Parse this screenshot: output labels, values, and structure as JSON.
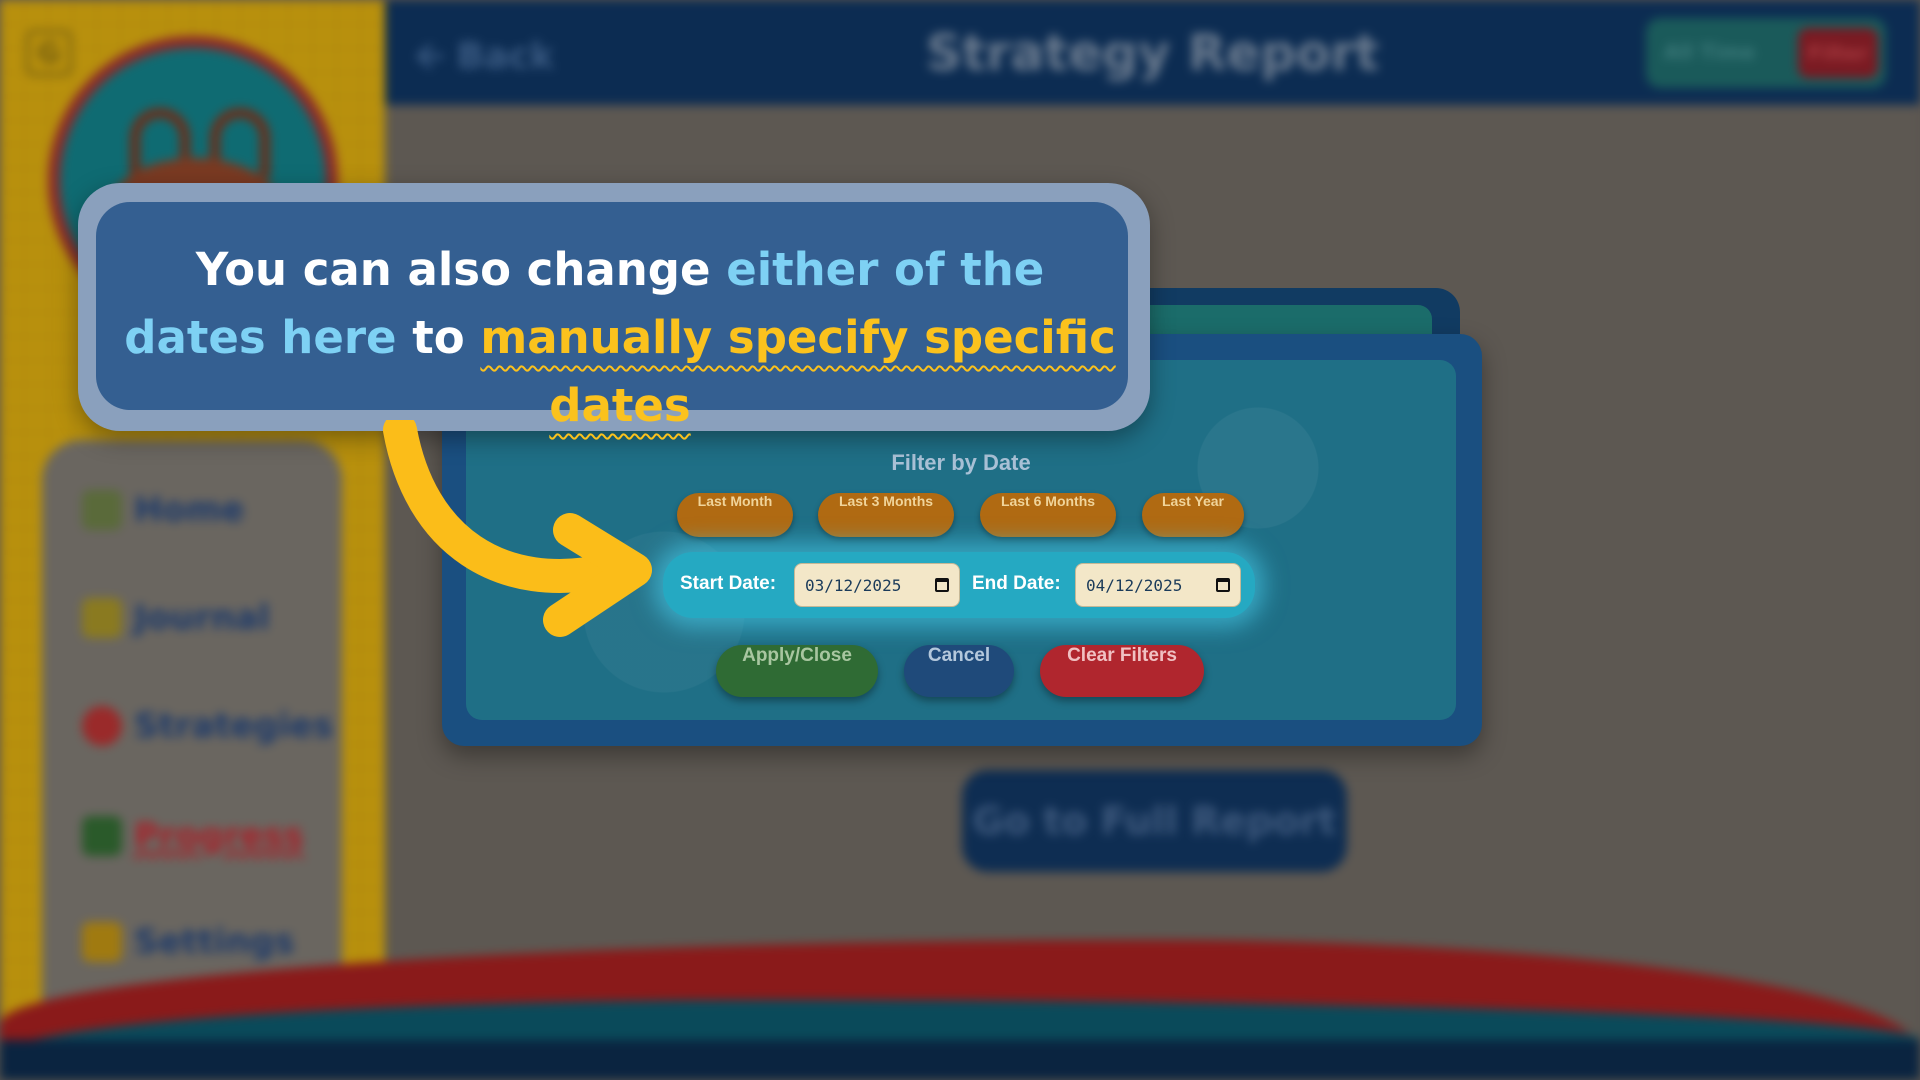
{
  "app": {
    "logo_letter": "G",
    "back_label": "Back",
    "title": "Strategy Report",
    "time_all_label": "All Time",
    "time_filter_label": "Filter"
  },
  "sidebar": {
    "items": [
      {
        "label": "Home",
        "icon": "home-icon",
        "color": "#1d3a6a"
      },
      {
        "label": "Journal",
        "icon": "pencil-icon",
        "color": "#1d3a6a"
      },
      {
        "label": "Strategies",
        "icon": "lightbulb-icon",
        "color": "#1d3a6a"
      },
      {
        "label": "Progress",
        "icon": "chart-icon",
        "color": "#a8222a",
        "active": true
      },
      {
        "label": "Settings",
        "icon": "gear-icon",
        "color": "#1d3a6a"
      }
    ]
  },
  "main": {
    "full_report_label": "Go to Full Report"
  },
  "filter_modal": {
    "title": "Filter by Date",
    "presets": [
      "Last Month",
      "Last 3 Months",
      "Last 6 Months",
      "Last Year"
    ],
    "start_label": "Start Date:",
    "start_value": "03/12/2025",
    "end_label": "End Date:",
    "end_value": "04/12/2025",
    "apply_label": "Apply/Close",
    "cancel_label": "Cancel",
    "clear_label": "Clear Filters"
  },
  "callout": {
    "part1": "You can also change ",
    "part2": "either of the dates here",
    "part3": " to ",
    "part4": "manually specify specific dates"
  },
  "colors": {
    "callout_bg": "#345f91",
    "highlight_blue": "#7ed1f4",
    "highlight_yellow": "#fbc21d",
    "apply_green": "#2f6b34",
    "cancel_navy": "#1f4a7a",
    "clear_red": "#b0262e",
    "preset_orange": "#b06a12"
  }
}
